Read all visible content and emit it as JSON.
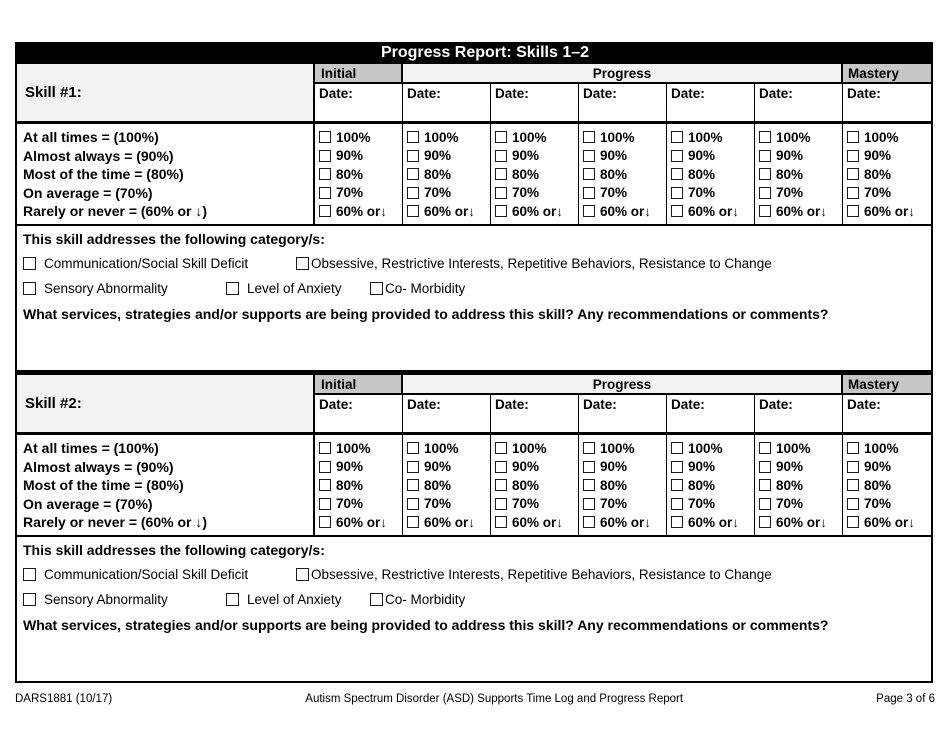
{
  "title": "Progress Report: Skills 1–2",
  "columns": {
    "initial": "Initial",
    "progress": "Progress",
    "mastery": "Mastery",
    "date_label": "Date:"
  },
  "legend_lines": [
    "At all times = (100%)",
    "Almost always = (90%)",
    "Most of the time = (80%)",
    "On average = (70%)",
    "Rarely or never = (60% or ↓)"
  ],
  "frequency_options": [
    "100%",
    "90%",
    "80%",
    "70%",
    "60% or↓"
  ],
  "skills": [
    {
      "label": "Skill #1:"
    },
    {
      "label": "Skill #2:"
    }
  ],
  "category": {
    "heading": "This skill addresses the following category/s:",
    "row1": [
      "Communication/Social Skill Deficit",
      "Obsessive, Restrictive Interests, Repetitive Behaviors, Resistance to Change"
    ],
    "row2": [
      "Sensory Abnormality",
      "Level of Anxiety",
      "Co- Morbidity"
    ],
    "question": "What services, strategies and/or supports are being provided to address this skill? Any recommendations or comments?"
  },
  "footer": {
    "left": "DARS1881 (10/17)",
    "center": "Autism Spectrum Disorder (ASD) Supports Time Log and Progress Report",
    "right": "Page 3 of 6"
  },
  "colors": {
    "header_gray": "#c7c7c7",
    "light_gray": "#f2f2f2",
    "bar_black": "#000000"
  }
}
